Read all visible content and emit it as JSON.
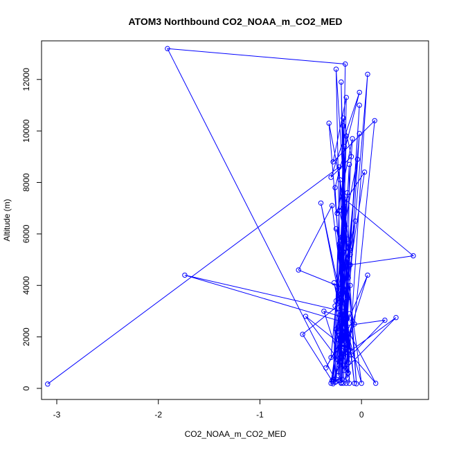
{
  "chart_data": {
    "type": "line",
    "title": "ATOM3 Northbound CO2_NOAA_m_CO2_MED",
    "xlabel": "CO2_NOAA_m_CO2_MED",
    "ylabel": "Altitude (m)",
    "xlim": [
      -3.15,
      0.66
    ],
    "ylim": [
      -430,
      13500
    ],
    "xticks": [
      -3,
      -2,
      -1,
      0
    ],
    "yticks": [
      0,
      2000,
      4000,
      6000,
      8000,
      10000,
      12000
    ],
    "grid": false,
    "line_color": "#0000ff",
    "series": [
      {
        "x": [
          -3.09,
          -0.22,
          -0.12,
          -0.18,
          -0.22,
          -0.15,
          -0.28,
          -0.21,
          -0.05,
          -0.25,
          -0.19,
          -0.02,
          -0.2,
          -0.17,
          -0.14,
          -0.12,
          -0.25,
          -1.91,
          -0.16,
          -0.21,
          -0.18,
          -0.1,
          -0.3,
          -0.02,
          -0.26,
          -0.15,
          -0.2,
          -0.13,
          -0.32,
          -0.17,
          -0.23,
          -0.09,
          -0.24,
          0.03,
          -0.28,
          -0.16,
          -0.14,
          -0.3,
          -0.19,
          -0.04,
          -0.26,
          -0.22,
          -0.11,
          -0.18,
          0.51,
          -0.11,
          -0.25,
          -0.13,
          -0.22,
          -0.07,
          -0.29,
          -0.62,
          -0.18,
          -0.06,
          -0.25,
          -0.14,
          -0.19,
          -1.74,
          -0.2,
          -0.3,
          -0.12,
          -0.24,
          -0.16,
          0.0,
          -0.27,
          -0.15,
          -0.21,
          -0.4,
          -0.12,
          -0.16,
          -0.21,
          -0.37,
          -0.14,
          -0.28,
          0.06,
          -0.19,
          -0.13,
          -0.55,
          -0.17,
          -0.23,
          -0.1,
          0.23,
          -0.22,
          -0.18,
          -0.14,
          -0.58,
          -0.29,
          -0.11,
          -0.2,
          -0.35,
          -0.09,
          -0.15,
          -0.26,
          0.14,
          -0.19,
          -0.12,
          -0.23,
          0.34,
          -0.17,
          -0.25,
          -0.13,
          0.06,
          -0.2,
          -0.15,
          -0.28,
          0.13,
          -0.07,
          -0.22,
          -0.02,
          -0.18
        ],
        "y": [
          170,
          8600,
          200,
          10200,
          300,
          9800,
          250,
          8100,
          180,
          12400,
          350,
          11000,
          220,
          9400,
          400,
          8700,
          260,
          13200,
          12600,
          300,
          10500,
          9000,
          8200,
          11500,
          7800,
          200,
          11900,
          1000,
          10300,
          7200,
          500,
          9700,
          6800,
          8400,
          350,
          6300,
          7600,
          1200,
          5900,
          8900,
          240,
          6900,
          5200,
          7400,
          5150,
          4800,
          6200,
          4300,
          5600,
          200,
          7100,
          4600,
          3900,
          6500,
          3400,
          5800,
          3000,
          4400,
          2600,
          200,
          5400,
          2200,
          4900,
          200,
          4100,
          1800,
          3600,
          7200,
          1500,
          3300,
          1000,
          3000,
          2700,
          180,
          4400,
          2100,
          600,
          2800,
          1600,
          3800,
          1300,
          2650,
          2400,
          900,
          3500,
          2100,
          300,
          4000,
          1900,
          800,
          2600,
          1400,
          3200,
          200,
          1700,
          2900,
          1100,
          2750,
          700,
          2300,
          600,
          12200,
          200,
          11300,
          8800,
          10400,
          2500,
          900,
          9900,
          200
        ]
      }
    ]
  }
}
